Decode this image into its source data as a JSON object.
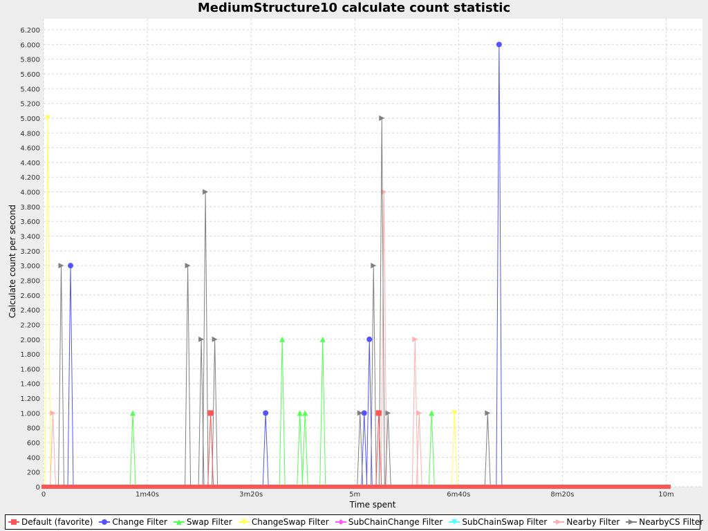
{
  "chart_data": {
    "type": "line",
    "title": "MediumStructure10 calculate count statistic",
    "xlabel": "Time spent",
    "ylabel": "Calculate count per second",
    "xlim": [
      0,
      635
    ],
    "ylim": [
      0,
      6350
    ],
    "x_ticks": [
      {
        "value": 0,
        "label": "0"
      },
      {
        "value": 100,
        "label": "1m40s"
      },
      {
        "value": 200,
        "label": "3m20s"
      },
      {
        "value": 300,
        "label": "5m"
      },
      {
        "value": 400,
        "label": "6m40s"
      },
      {
        "value": 500,
        "label": "8m20s"
      },
      {
        "value": 600,
        "label": "10m"
      }
    ],
    "y_ticks": [
      {
        "value": 0,
        "label": "0"
      },
      {
        "value": 200,
        "label": "200"
      },
      {
        "value": 400,
        "label": "400"
      },
      {
        "value": 600,
        "label": "600"
      },
      {
        "value": 800,
        "label": "800"
      },
      {
        "value": 1000,
        "label": "1.000"
      },
      {
        "value": 1200,
        "label": "1.200"
      },
      {
        "value": 1400,
        "label": "1.400"
      },
      {
        "value": 1600,
        "label": "1.600"
      },
      {
        "value": 1800,
        "label": "1.800"
      },
      {
        "value": 2000,
        "label": "2.000"
      },
      {
        "value": 2200,
        "label": "2.200"
      },
      {
        "value": 2400,
        "label": "2.400"
      },
      {
        "value": 2600,
        "label": "2.600"
      },
      {
        "value": 2800,
        "label": "2.800"
      },
      {
        "value": 3000,
        "label": "3.000"
      },
      {
        "value": 3200,
        "label": "3.200"
      },
      {
        "value": 3400,
        "label": "3.400"
      },
      {
        "value": 3600,
        "label": "3.600"
      },
      {
        "value": 3800,
        "label": "3.800"
      },
      {
        "value": 4000,
        "label": "4.000"
      },
      {
        "value": 4200,
        "label": "4.200"
      },
      {
        "value": 4400,
        "label": "4.400"
      },
      {
        "value": 4600,
        "label": "4.600"
      },
      {
        "value": 4800,
        "label": "4.800"
      },
      {
        "value": 5000,
        "label": "5.000"
      },
      {
        "value": 5200,
        "label": "5.200"
      },
      {
        "value": 5400,
        "label": "5.400"
      },
      {
        "value": 5600,
        "label": "5.600"
      },
      {
        "value": 5800,
        "label": "5.800"
      },
      {
        "value": 6000,
        "label": "6.000"
      },
      {
        "value": 6200,
        "label": "6.200"
      }
    ],
    "grid": true,
    "legend_position": "bottom",
    "baseline_x_range": [
      0,
      604
    ],
    "series": [
      {
        "name": "Default (favorite)",
        "color": "#ff5555",
        "marker": "square",
        "points": [
          [
            161,
            1000
          ],
          [
            323,
            1000
          ]
        ]
      },
      {
        "name": "Change Filter",
        "color": "#5555ff",
        "marker": "circle",
        "points": [
          [
            26,
            3000
          ],
          [
            214,
            1000
          ],
          [
            309,
            1000
          ],
          [
            314,
            2000
          ],
          [
            439,
            6000
          ]
        ]
      },
      {
        "name": "Swap Filter",
        "color": "#55ff55",
        "marker": "triangle-up",
        "points": [
          [
            86,
            1000
          ],
          [
            230,
            2000
          ],
          [
            247,
            1000
          ],
          [
            252,
            1000
          ],
          [
            269,
            2000
          ],
          [
            374,
            1000
          ]
        ]
      },
      {
        "name": "ChangeSwap Filter",
        "color": "#ffff55",
        "marker": "triangle-down",
        "points": [
          [
            4,
            5000
          ],
          [
            396,
            1000
          ]
        ]
      },
      {
        "name": "SubChainChange Filter",
        "color": "#ff55ff",
        "marker": "diamond",
        "points": []
      },
      {
        "name": "SubChainSwap Filter",
        "color": "#55ffff",
        "marker": "triangle-down",
        "points": []
      },
      {
        "name": "Nearby Filter",
        "color": "#ffafaf",
        "marker": "triangle-right",
        "points": [
          [
            9,
            1000
          ],
          [
            328,
            4000
          ],
          [
            358,
            2000
          ],
          [
            362,
            1000
          ]
        ]
      },
      {
        "name": "NearbyCS Filter",
        "color": "#808080",
        "marker": "triangle-right",
        "points": [
          [
            17,
            3000
          ],
          [
            139,
            3000
          ],
          [
            152,
            2000
          ],
          [
            156,
            4000
          ],
          [
            165,
            2000
          ],
          [
            305,
            1000
          ],
          [
            318,
            3000
          ],
          [
            326,
            5000
          ],
          [
            332,
            1000
          ],
          [
            428,
            1000
          ]
        ]
      }
    ]
  }
}
